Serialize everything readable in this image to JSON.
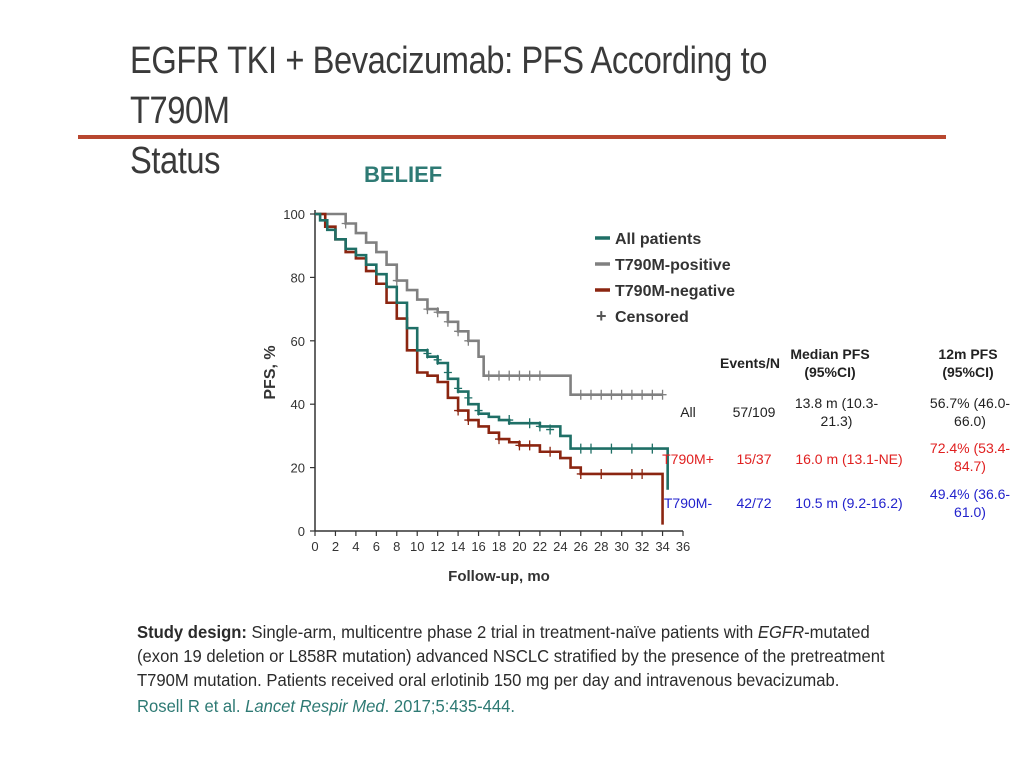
{
  "slide": {
    "title_line1": "EGFR TKI + Bevacizumab: PFS According to T790M",
    "title_line2": "Status",
    "subtitle": "BELIEF",
    "accent_color": "#b8472f"
  },
  "stats_table": {
    "headers": [
      "",
      "Events/N",
      "Median PFS (95%CI)",
      "12m PFS (95%CI)"
    ],
    "rows": [
      {
        "label": "All",
        "events": "57/109",
        "median": "13.8 m (10.3-21.3)",
        "pfs12": "56.7% (46.0-66.0)",
        "color": "#222222"
      },
      {
        "label": "T790M+",
        "events": "15/37",
        "median": "16.0 m (13.1-NE)",
        "pfs12": "72.4% (53.4-84.7)",
        "color": "#e02020"
      },
      {
        "label": "T790M-",
        "events": "42/72",
        "median": "10.5 m (9.2-16.2)",
        "pfs12": "49.4% (36.6-61.0)",
        "color": "#2222cc"
      }
    ]
  },
  "design": {
    "label": "Study design:",
    "text_a": " Single-arm, multicentre phase 2 trial in treatment-naïve patients with ",
    "gene": "EGFR",
    "text_b": "-mutated (exon 19 deletion or L858R mutation) advanced NSCLC stratified by the presence of the pretreatment T790M mutation. Patients received oral erlotinib 150 mg per day and intravenous bevacizumab.",
    "cite_authors": "Rosell R et al. ",
    "cite_journal": "Lancet Respir Med",
    "cite_rest": ". 2017;5:435-444."
  },
  "chart_data": {
    "type": "line",
    "xlabel": "Follow-up, mo",
    "ylabel": "PFS, %",
    "xlim": [
      0,
      36
    ],
    "ylim": [
      0,
      100
    ],
    "xticks": [
      0,
      2,
      4,
      6,
      8,
      10,
      12,
      14,
      16,
      18,
      20,
      22,
      24,
      26,
      28,
      30,
      32,
      34,
      36
    ],
    "yticks": [
      0,
      20,
      40,
      60,
      80,
      100
    ],
    "grid": false,
    "legend_position": "top-right",
    "legend": [
      "All patients",
      "T790M-positive",
      "T790M-negative",
      "Censored"
    ],
    "censor_marker": "+",
    "series": [
      {
        "name": "All patients",
        "color": "#1f6f66",
        "x": [
          0,
          0.5,
          1.2,
          2,
          3,
          4,
          5,
          6,
          7,
          8,
          9,
          10,
          11,
          12,
          13,
          14,
          15,
          16,
          17,
          18,
          19,
          20,
          22,
          24,
          25,
          26,
          28,
          30,
          32,
          34,
          34.5
        ],
        "y": [
          100,
          98,
          95,
          92,
          89,
          87,
          84,
          81,
          77,
          72,
          64,
          57,
          55,
          53,
          48,
          44,
          40,
          37,
          36,
          35,
          34,
          34,
          33,
          30,
          26,
          26,
          26,
          26,
          26,
          26,
          13
        ],
        "censored_x": [
          11,
          12,
          13,
          14,
          15,
          16,
          19,
          21,
          22,
          23,
          26,
          27,
          29,
          31,
          33
        ],
        "censored_y": [
          56,
          54,
          50,
          45,
          42,
          38,
          35,
          34,
          33,
          32,
          26,
          26,
          26,
          26,
          26
        ]
      },
      {
        "name": "T790M-positive",
        "color": "#808080",
        "x": [
          0,
          2,
          3,
          4,
          5,
          6,
          7,
          8,
          9,
          10,
          11,
          12,
          13,
          14,
          15,
          16,
          16.5,
          18,
          20,
          22,
          24,
          25,
          26,
          28,
          30,
          32,
          34
        ],
        "y": [
          100,
          100,
          97,
          94,
          91,
          88,
          84,
          79,
          76,
          73,
          70,
          69,
          66,
          63,
          60,
          55,
          49,
          49,
          49,
          49,
          49,
          43,
          43,
          43,
          43,
          43,
          43
        ],
        "censored_x": [
          3,
          8,
          11,
          12,
          13,
          14,
          15,
          17,
          18,
          19,
          20,
          21,
          22,
          26,
          27,
          28,
          29,
          30,
          31,
          32,
          33,
          34
        ],
        "censored_y": [
          97,
          79,
          70,
          69,
          66,
          63,
          60,
          49,
          49,
          49,
          49,
          49,
          49,
          43,
          43,
          43,
          43,
          43,
          43,
          43,
          43,
          43
        ]
      },
      {
        "name": "T790M-negative",
        "color": "#8b2510",
        "x": [
          0,
          1,
          2,
          3,
          4,
          5,
          6,
          7,
          8,
          9,
          10,
          11,
          12,
          13,
          14,
          15,
          16,
          17,
          18,
          19,
          20,
          22,
          24,
          25,
          26,
          28,
          30,
          32,
          33.7,
          34
        ],
        "y": [
          100,
          96,
          92,
          88,
          86,
          82,
          78,
          72,
          67,
          57,
          50,
          49,
          47,
          42,
          38,
          35,
          33,
          31,
          29,
          28,
          27,
          25,
          23,
          20,
          18,
          18,
          18,
          18,
          18,
          2
        ],
        "censored_x": [
          14,
          15,
          18,
          20,
          21,
          23,
          26,
          28,
          31,
          32
        ],
        "censored_y": [
          38,
          35,
          29,
          27,
          27,
          25,
          18,
          18,
          18,
          18
        ]
      }
    ]
  }
}
